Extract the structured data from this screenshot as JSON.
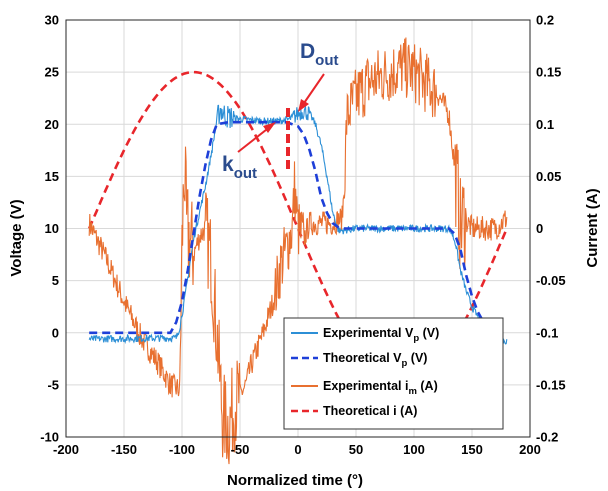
{
  "chart_data": {
    "type": "line",
    "xlabel": "Normalized time (°)",
    "ylabel_left": "Voltage (V)",
    "ylabel_right": "Current (A)",
    "xlim": [
      -200,
      200
    ],
    "ylim_left": [
      -10,
      30
    ],
    "ylim_right": [
      -0.2,
      0.2
    ],
    "xticks": [
      -200,
      -150,
      -100,
      -50,
      0,
      50,
      100,
      150,
      200
    ],
    "yticks_left": [
      -10,
      -5,
      0,
      5,
      10,
      15,
      20,
      25,
      30
    ],
    "yticks_right": [
      -0.2,
      -0.15,
      -0.1,
      -0.05,
      0,
      0.05,
      0.1,
      0.15,
      0.2
    ],
    "grid": true,
    "legend_position": "bottom-right",
    "colors": {
      "exp_vp": "#2c8fd6",
      "theo_vp": "#1e3fd8",
      "exp_im": "#e87030",
      "theo_i": "#e8262b",
      "annotation_text": "#2a4b8d",
      "annotation_line": "#e8262b"
    },
    "series": [
      {
        "name": "Experimental V_p (V)",
        "axis": "left",
        "style": "solid",
        "x": [
          -180,
          -105,
          -102,
          -98,
          -90,
          -80,
          -75,
          -70,
          -67,
          -64,
          -60,
          -50,
          -40,
          -30,
          -20,
          -10,
          -5,
          0,
          5,
          10,
          15,
          20,
          25,
          30,
          35,
          40,
          44,
          50,
          60,
          80,
          100,
          120,
          130,
          133,
          136,
          140,
          145,
          150,
          155,
          160,
          165,
          170,
          175,
          180
        ],
        "y": [
          -0.6,
          -0.5,
          0.5,
          3,
          9,
          14,
          17,
          20.3,
          21.5,
          21,
          20.7,
          20.5,
          20.4,
          20.3,
          20.3,
          20.4,
          20.6,
          21,
          21.3,
          21,
          20,
          18,
          15,
          11.5,
          9.8,
          9.8,
          9.9,
          10,
          10,
          10,
          10,
          10,
          10,
          9.5,
          8.5,
          6,
          4,
          2.5,
          1.5,
          0.8,
          0,
          -0.5,
          -0.8,
          -0.8
        ]
      },
      {
        "name": "Theoretical V_p (V)",
        "axis": "left",
        "style": "dashed",
        "x": [
          -180,
          -110,
          -105,
          -100,
          -95,
          -90,
          -85,
          -80,
          -75,
          -70,
          -60,
          -50,
          -40,
          -30,
          -20,
          -10,
          0,
          5,
          10,
          15,
          20,
          25,
          30,
          35,
          40,
          45,
          50,
          80,
          110,
          130,
          135,
          140,
          145,
          150,
          155,
          160,
          165,
          170,
          175,
          180
        ],
        "y": [
          0,
          0,
          1,
          3,
          6,
          9.5,
          13,
          16,
          18.5,
          20,
          20.2,
          20.2,
          20.2,
          20.2,
          20.2,
          20.2,
          19.8,
          19,
          17.5,
          15.5,
          13,
          11.5,
          10.5,
          10.1,
          10,
          10,
          10,
          10,
          10,
          10,
          9.5,
          8,
          5.5,
          3.5,
          2,
          1,
          0.4,
          0.1,
          0,
          0
        ]
      },
      {
        "name": "Experimental i_m (A)",
        "axis": "right",
        "style": "solid",
        "x": [
          -180,
          -165,
          -150,
          -135,
          -120,
          -110,
          -102,
          -100,
          -98,
          -96,
          -90,
          -85,
          -80,
          -75,
          -70,
          -65,
          -60,
          -55,
          -50,
          -45,
          -40,
          -30,
          -20,
          -15,
          -10,
          -5,
          -3,
          0,
          5,
          10,
          20,
          30,
          38,
          40,
          42,
          45,
          50,
          60,
          70,
          80,
          90,
          100,
          110,
          120,
          130,
          136,
          138,
          140,
          143,
          150,
          160,
          170,
          180
        ],
        "y": [
          0.005,
          -0.03,
          -0.07,
          -0.105,
          -0.13,
          -0.15,
          -0.155,
          -0.02,
          0.06,
          0.0,
          -0.025,
          -0.008,
          0.0,
          -0.03,
          -0.1,
          -0.18,
          -0.19,
          -0.17,
          -0.16,
          -0.15,
          -0.13,
          -0.1,
          -0.065,
          -0.035,
          -0.02,
          0.0,
          0.04,
          0.0,
          -0.01,
          0.005,
          0.005,
          0.005,
          0.01,
          0.04,
          0.105,
          0.115,
          0.125,
          0.14,
          0.145,
          0.15,
          0.155,
          0.15,
          0.14,
          0.13,
          0.11,
          0.05,
          0.03,
          0.0,
          0.01,
          0.0,
          0.0,
          0.0,
          0.01
        ]
      },
      {
        "name": "Theoretical i (A)",
        "axis": "right",
        "style": "dashed",
        "type": "sine",
        "amplitude": 0.15,
        "phase_deg": -180,
        "x_start": -180,
        "x_end": 180
      }
    ],
    "annotations": [
      {
        "text": "D",
        "sub": "out"
      },
      {
        "text": "k",
        "sub": "out"
      }
    ]
  },
  "legend": [
    {
      "key": "exp_vp",
      "text": "Experimental V",
      "sub": "p",
      "suffix": " (V)"
    },
    {
      "key": "theo_vp",
      "text": "Theoretical V",
      "sub": "p",
      "suffix": " (V)"
    },
    {
      "key": "exp_im",
      "text": "Experimental i",
      "sub": "m",
      "suffix": " (A)"
    },
    {
      "key": "theo_i",
      "text": "Theoretical i (A)",
      "sub": "",
      "suffix": ""
    }
  ]
}
